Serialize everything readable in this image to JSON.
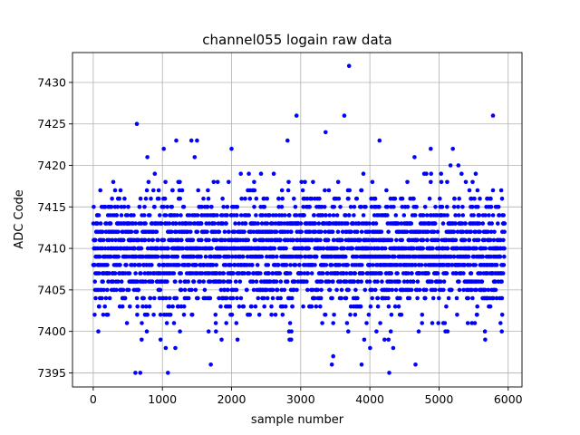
{
  "chart_data": {
    "type": "scatter",
    "title": "channel055 logain raw data",
    "xlabel": "sample number",
    "ylabel": "ADC Code",
    "xlim": [
      -300,
      6200
    ],
    "ylim": [
      7393.3,
      7433.6
    ],
    "xticks": [
      0,
      1000,
      2000,
      3000,
      4000,
      5000,
      6000
    ],
    "yticks": [
      7395,
      7400,
      7405,
      7410,
      7415,
      7420,
      7425,
      7430
    ],
    "grid": true,
    "marker_color": "#0000ff",
    "n_samples": 5950,
    "base_value": 7409,
    "dense_band": [
      7398,
      7421
    ],
    "outliers": [
      {
        "x": 630,
        "y": 7425
      },
      {
        "x": 610,
        "y": 7395
      },
      {
        "x": 680,
        "y": 7395
      },
      {
        "x": 1080,
        "y": 7395
      },
      {
        "x": 4280,
        "y": 7395
      },
      {
        "x": 3700,
        "y": 7432
      },
      {
        "x": 3630,
        "y": 7426
      },
      {
        "x": 2940,
        "y": 7426
      },
      {
        "x": 5780,
        "y": 7426
      },
      {
        "x": 3360,
        "y": 7424
      },
      {
        "x": 1420,
        "y": 7423
      },
      {
        "x": 1500,
        "y": 7423
      },
      {
        "x": 1200,
        "y": 7423
      },
      {
        "x": 2810,
        "y": 7423
      },
      {
        "x": 4140,
        "y": 7423
      },
      {
        "x": 1020,
        "y": 7422
      },
      {
        "x": 2000,
        "y": 7422
      },
      {
        "x": 4880,
        "y": 7422
      },
      {
        "x": 5200,
        "y": 7422
      },
      {
        "x": 3880,
        "y": 7396
      },
      {
        "x": 4660,
        "y": 7396
      },
      {
        "x": 1700,
        "y": 7396
      },
      {
        "x": 3470,
        "y": 7397
      },
      {
        "x": 3450,
        "y": 7396
      }
    ]
  }
}
